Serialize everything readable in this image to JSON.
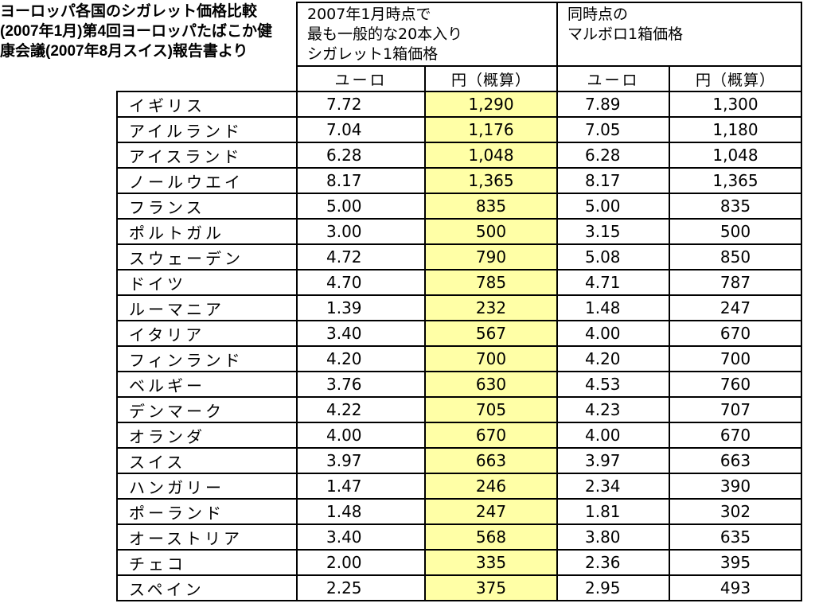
{
  "caption": "ヨーロッパ各国のシガレット価格比較(2007年1月)第4回ヨーロッパたばこか健康会議(2007年8月スイス)報告書より",
  "group_headers": {
    "common": "2007年1月時点で 最も一般的な20本入り シガレット1箱価格",
    "marlboro": "同時点の マルボロ1箱価格"
  },
  "sub_headers": {
    "euro": "ユーロ",
    "yen": "円（概算）"
  },
  "rows": [
    {
      "country": "イギリス",
      "euro1": "7.72",
      "yen1": "1,290",
      "euro2": "7.89",
      "yen2": "1,300"
    },
    {
      "country": "アイルランド",
      "euro1": "7.04",
      "yen1": "1,176",
      "euro2": "7.05",
      "yen2": "1,180"
    },
    {
      "country": "アイスランド",
      "euro1": "6.28",
      "yen1": "1,048",
      "euro2": "6.28",
      "yen2": "1,048"
    },
    {
      "country": "ノールウエイ",
      "euro1": "8.17",
      "yen1": "1,365",
      "euro2": "8.17",
      "yen2": "1,365"
    },
    {
      "country": "フランス",
      "euro1": "5.00",
      "yen1": "835",
      "euro2": "5.00",
      "yen2": "835"
    },
    {
      "country": "ポルトガル",
      "euro1": "3.00",
      "yen1": "500",
      "euro2": "3.15",
      "yen2": "500"
    },
    {
      "country": "スウェーデン",
      "euro1": "4.72",
      "yen1": "790",
      "euro2": "5.08",
      "yen2": "850"
    },
    {
      "country": "ドイツ",
      "euro1": "4.70",
      "yen1": "785",
      "euro2": "4.71",
      "yen2": "787"
    },
    {
      "country": "ルーマニア",
      "euro1": "1.39",
      "yen1": "232",
      "euro2": "1.48",
      "yen2": "247"
    },
    {
      "country": "イタリア",
      "euro1": "3.40",
      "yen1": "567",
      "euro2": "4.00",
      "yen2": "670"
    },
    {
      "country": "フィンランド",
      "euro1": "4.20",
      "yen1": "700",
      "euro2": "4.20",
      "yen2": "700"
    },
    {
      "country": "ベルギー",
      "euro1": "3.76",
      "yen1": "630",
      "euro2": "4.53",
      "yen2": "760"
    },
    {
      "country": "デンマーク",
      "euro1": "4.22",
      "yen1": "705",
      "euro2": "4.23",
      "yen2": "707"
    },
    {
      "country": "オランダ",
      "euro1": "4.00",
      "yen1": "670",
      "euro2": "4.00",
      "yen2": "670"
    },
    {
      "country": "スイス",
      "euro1": "3.97",
      "yen1": "663",
      "euro2": "3.97",
      "yen2": "663"
    },
    {
      "country": "ハンガリー",
      "euro1": "1.47",
      "yen1": "246",
      "euro2": "2.34",
      "yen2": "390"
    },
    {
      "country": "ポーランド",
      "euro1": "1.48",
      "yen1": "247",
      "euro2": "1.81",
      "yen2": "302"
    },
    {
      "country": "オーストリア",
      "euro1": "3.40",
      "yen1": "568",
      "euro2": "3.80",
      "yen2": "635"
    },
    {
      "country": "チェコ",
      "euro1": "2.00",
      "yen1": "335",
      "euro2": "2.36",
      "yen2": "395"
    },
    {
      "country": "スペイン",
      "euro1": "2.25",
      "yen1": "375",
      "euro2": "2.95",
      "yen2": "493"
    }
  ],
  "colors": {
    "highlight_column": "#ffffa6"
  }
}
